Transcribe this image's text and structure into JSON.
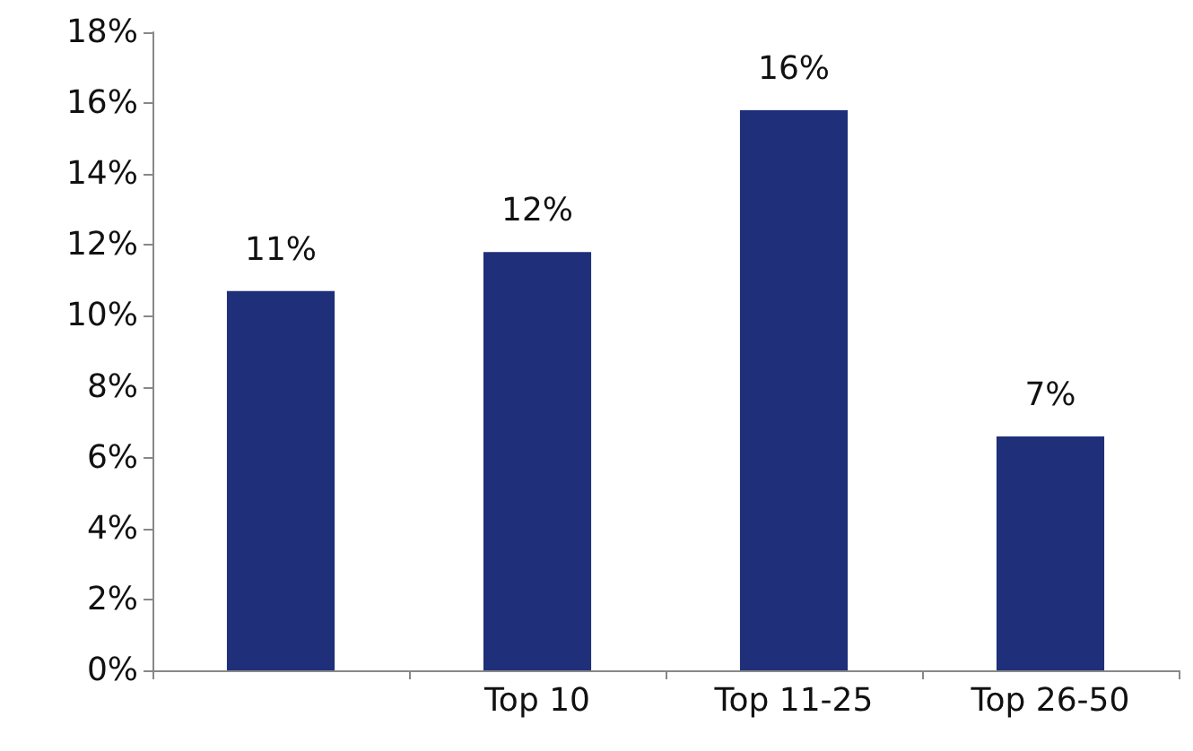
{
  "chart_data": {
    "type": "bar",
    "categories": [
      null,
      "Top 10",
      "Top 11-25",
      "Top 26-50"
    ],
    "values": [
      10.7,
      11.8,
      15.8,
      6.6
    ],
    "value_labels": [
      "11%",
      "12%",
      "16%",
      "7%"
    ],
    "color": "#1f2f7a",
    "ylim": [
      0,
      18
    ],
    "yticks": [
      {
        "value": 0,
        "label": "0%"
      },
      {
        "value": 2,
        "label": "2%"
      },
      {
        "value": 4,
        "label": "4%"
      },
      {
        "value": 6,
        "label": "6%"
      },
      {
        "value": 8,
        "label": "8%"
      },
      {
        "value": 10,
        "label": "10%"
      },
      {
        "value": 12,
        "label": "12%"
      },
      {
        "value": 14,
        "label": "14%"
      },
      {
        "value": 16,
        "label": "16%"
      },
      {
        "value": 18,
        "label": "18%"
      }
    ],
    "grid": false
  }
}
